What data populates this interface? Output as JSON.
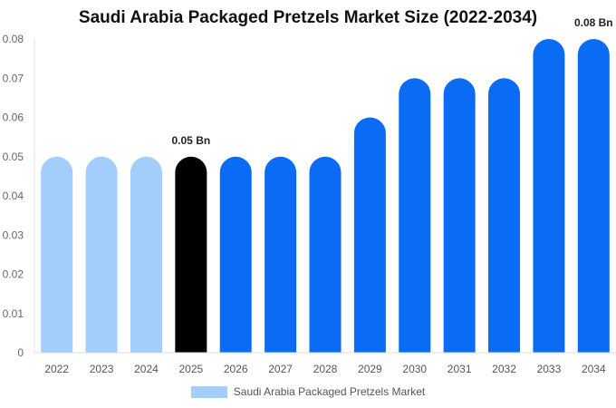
{
  "chart_data": {
    "type": "bar",
    "title": "Saudi Arabia Packaged Pretzels Market Size (2022-2034)",
    "categories": [
      "2022",
      "2023",
      "2024",
      "2025",
      "2026",
      "2027",
      "2028",
      "2029",
      "2030",
      "2031",
      "2032",
      "2033",
      "2034"
    ],
    "series": [
      {
        "name": "Saudi Arabia Packaged Pretzels Market",
        "values": [
          0.05,
          0.05,
          0.05,
          0.05,
          0.05,
          0.05,
          0.05,
          0.06,
          0.07,
          0.07,
          0.07,
          0.08,
          0.08
        ]
      }
    ],
    "bar_colors": [
      "#a3cdfb",
      "#a3cdfb",
      "#a3cdfb",
      "#000000",
      "#0a6cf5",
      "#0a6cf5",
      "#0a6cf5",
      "#0a6cf5",
      "#0a6cf5",
      "#0a6cf5",
      "#0a6cf5",
      "#0a6cf5",
      "#0a6cf5"
    ],
    "data_labels": [
      {
        "index": 3,
        "text": "0.05 Bn"
      },
      {
        "index": 12,
        "text": "0.08 Bn"
      }
    ],
    "y_ticks": [
      "0",
      "0.01",
      "0.02",
      "0.03",
      "0.04",
      "0.05",
      "0.06",
      "0.07",
      "0.08"
    ],
    "ylim": [
      0,
      0.08
    ],
    "grid": false,
    "legend_position": "bottom",
    "legend_color": "#a3cdfb"
  }
}
